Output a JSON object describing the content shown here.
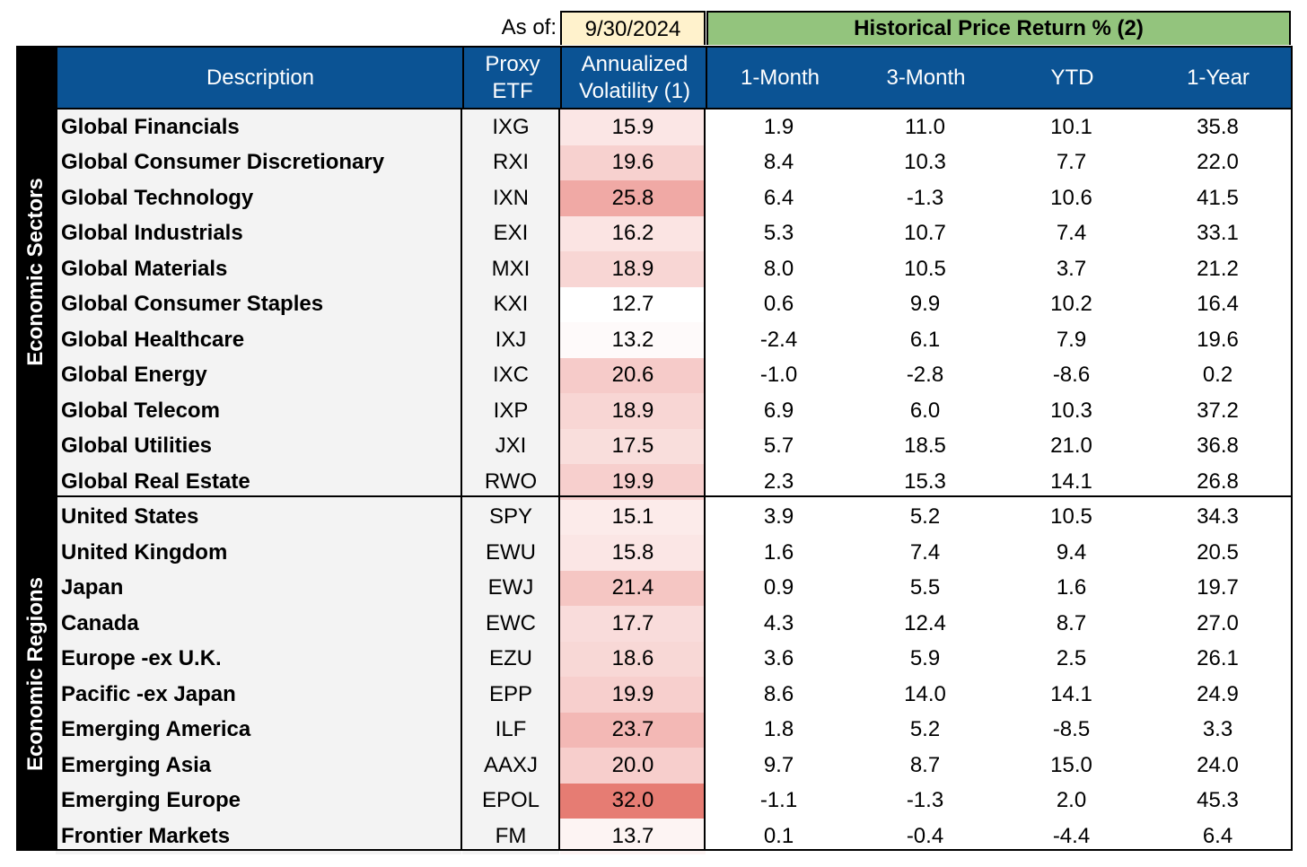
{
  "asof_label": "As of:",
  "asof_date": "9/30/2024",
  "hist_header": "Historical Price Return % (2)",
  "headers": {
    "description": "Description",
    "proxy_etf": [
      "Proxy",
      "ETF"
    ],
    "volatility": [
      "Annualized",
      "Volatility (1)"
    ],
    "m1": "1-Month",
    "m3": "3-Month",
    "ytd": "YTD",
    "y1": "1-Year"
  },
  "groups": [
    {
      "label": "Economic Sectors",
      "rows": [
        {
          "desc": "Global Financials",
          "etf": "IXG",
          "vol": "15.9",
          "m1": "1.9",
          "m3": "11.0",
          "ytd": "10.1",
          "y1": "35.8",
          "heat": "#fbe6e5"
        },
        {
          "desc": "Global Consumer Discretionary",
          "etf": "RXI",
          "vol": "19.6",
          "m1": "8.4",
          "m3": "10.3",
          "ytd": "7.7",
          "y1": "22.0",
          "heat": "#f7d1cf"
        },
        {
          "desc": "Global Technology",
          "etf": "IXN",
          "vol": "25.8",
          "m1": "6.4",
          "m3": "-1.3",
          "ytd": "10.6",
          "y1": "41.5",
          "heat": "#f0a9a5"
        },
        {
          "desc": "Global Industrials",
          "etf": "EXI",
          "vol": "16.2",
          "m1": "5.3",
          "m3": "10.7",
          "ytd": "7.4",
          "y1": "33.1",
          "heat": "#fbe4e3"
        },
        {
          "desc": "Global Materials",
          "etf": "MXI",
          "vol": "18.9",
          "m1": "8.0",
          "m3": "10.5",
          "ytd": "3.7",
          "y1": "21.2",
          "heat": "#f8d6d4"
        },
        {
          "desc": "Global Consumer Staples",
          "etf": "KXI",
          "vol": "12.7",
          "m1": "0.6",
          "m3": "9.9",
          "ytd": "10.2",
          "y1": "16.4",
          "heat": "#ffffff"
        },
        {
          "desc": "Global Healthcare",
          "etf": "IXJ",
          "vol": "13.2",
          "m1": "-2.4",
          "m3": "6.1",
          "ytd": "7.9",
          "y1": "19.6",
          "heat": "#fefafa"
        },
        {
          "desc": "Global Energy",
          "etf": "IXC",
          "vol": "20.6",
          "m1": "-1.0",
          "m3": "-2.8",
          "ytd": "-8.6",
          "y1": "0.2",
          "heat": "#f6cbc9"
        },
        {
          "desc": "Global Telecom",
          "etf": "IXP",
          "vol": "18.9",
          "m1": "6.9",
          "m3": "6.0",
          "ytd": "10.3",
          "y1": "37.2",
          "heat": "#f8d6d4"
        },
        {
          "desc": "Global Utilities",
          "etf": "JXI",
          "vol": "17.5",
          "m1": "5.7",
          "m3": "18.5",
          "ytd": "21.0",
          "y1": "36.8",
          "heat": "#f9dedc"
        },
        {
          "desc": "Global Real Estate",
          "etf": "RWO",
          "vol": "19.9",
          "m1": "2.3",
          "m3": "15.3",
          "ytd": "14.1",
          "y1": "26.8",
          "heat": "#f7cfcd"
        }
      ]
    },
    {
      "label": "Economic Regions",
      "rows": [
        {
          "desc": "United States",
          "etf": "SPY",
          "vol": "15.1",
          "m1": "3.9",
          "m3": "5.2",
          "ytd": "10.5",
          "y1": "34.3",
          "heat": "#fcebea"
        },
        {
          "desc": "United Kingdom",
          "etf": "EWU",
          "vol": "15.8",
          "m1": "1.6",
          "m3": "7.4",
          "ytd": "9.4",
          "y1": "20.5",
          "heat": "#fbe6e5"
        },
        {
          "desc": "Japan",
          "etf": "EWJ",
          "vol": "21.4",
          "m1": "0.9",
          "m3": "5.5",
          "ytd": "1.6",
          "y1": "19.7",
          "heat": "#f5c6c3"
        },
        {
          "desc": "Canada",
          "etf": "EWC",
          "vol": "17.7",
          "m1": "4.3",
          "m3": "12.4",
          "ytd": "8.7",
          "y1": "27.0",
          "heat": "#f9dcdb"
        },
        {
          "desc": "Europe -ex U.K.",
          "etf": "EZU",
          "vol": "18.6",
          "m1": "3.6",
          "m3": "5.9",
          "ytd": "2.5",
          "y1": "26.1",
          "heat": "#f8d8d6"
        },
        {
          "desc": "Pacific -ex Japan",
          "etf": "EPP",
          "vol": "19.9",
          "m1": "8.6",
          "m3": "14.0",
          "ytd": "14.1",
          "y1": "24.9",
          "heat": "#f7cfcd"
        },
        {
          "desc": "Emerging America",
          "etf": "ILF",
          "vol": "23.7",
          "m1": "1.8",
          "m3": "5.2",
          "ytd": "-8.5",
          "y1": "3.3",
          "heat": "#f3b8b5"
        },
        {
          "desc": "Emerging Asia",
          "etf": "AAXJ",
          "vol": "20.0",
          "m1": "9.7",
          "m3": "8.7",
          "ytd": "15.0",
          "y1": "24.0",
          "heat": "#f7cecc"
        },
        {
          "desc": "Emerging Europe",
          "etf": "EPOL",
          "vol": "32.0",
          "m1": "-1.1",
          "m3": "-1.3",
          "ytd": "2.0",
          "y1": "45.3",
          "heat": "#e67c73"
        },
        {
          "desc": "Frontier Markets",
          "etf": "FM",
          "vol": "13.7",
          "m1": "0.1",
          "m3": "-0.4",
          "ytd": "-4.4",
          "y1": "6.4",
          "heat": "#fdf4f3"
        }
      ]
    }
  ]
}
